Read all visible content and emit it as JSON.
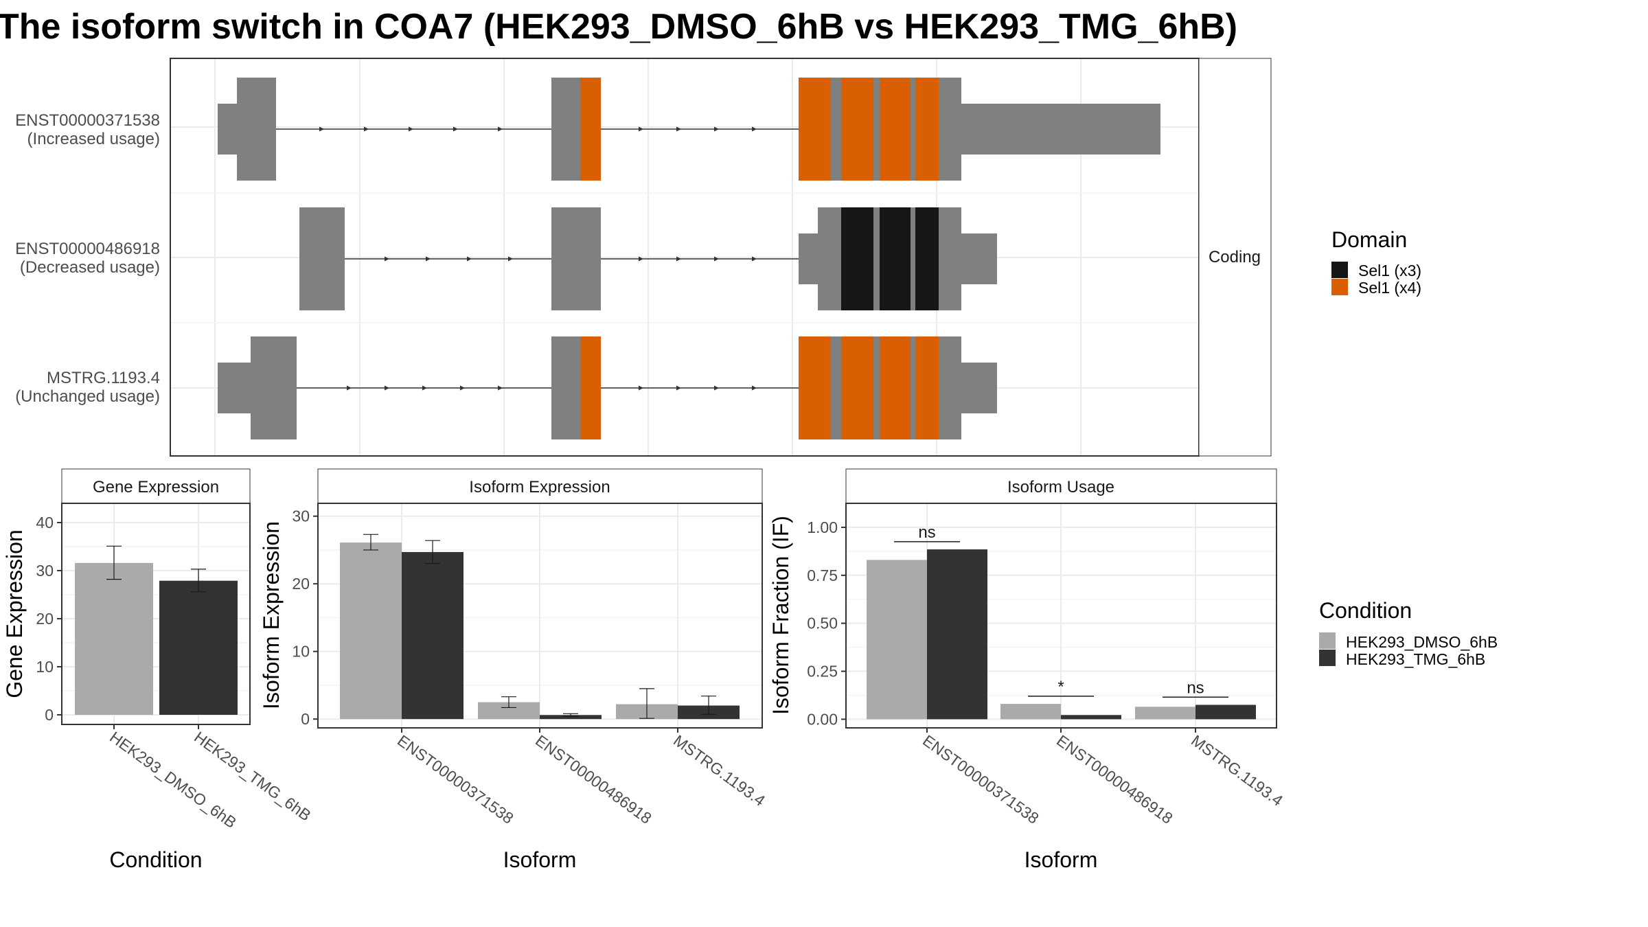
{
  "title": "The isoform switch in COA7 (HEK293_DMSO_6hB vs HEK293_TMG_6hB)",
  "colors": {
    "exon": "#808080",
    "sel1_x3": "#161616",
    "sel1_x4": "#D95F02",
    "dmso": "#AAAAAA",
    "tmg": "#333333",
    "grid": "#EBEBEB",
    "strip_fill": "#FFFFFF"
  },
  "structure": {
    "strip_label": "Coding",
    "transcripts": [
      {
        "id": "ENST00000371538",
        "usage": "(Increased usage)"
      },
      {
        "id": "ENST00000486918",
        "usage": "(Decreased usage)"
      },
      {
        "id": "MSTRG.1193.4",
        "usage": "(Unchanged usage)"
      }
    ],
    "legend": {
      "title": "Domain",
      "items": [
        {
          "label": "Sel1 (x3)",
          "color": "#161616"
        },
        {
          "label": "Sel1 (x4)",
          "color": "#D95F02"
        }
      ]
    }
  },
  "condition_legend": {
    "title": "Condition",
    "items": [
      {
        "label": "HEK293_DMSO_6hB",
        "color": "#AAAAAA"
      },
      {
        "label": "HEK293_TMG_6hB",
        "color": "#333333"
      }
    ]
  },
  "chart_data": [
    {
      "type": "bar",
      "title": "Gene Expression",
      "xlabel": "Condition",
      "ylabel": "Gene Expression",
      "categories": [
        "HEK293_DMSO_6hB",
        "HEK293_TMG_6hB"
      ],
      "series": [
        {
          "name": "HEK293_DMSO_6hB",
          "values": [
            31.6,
            null
          ],
          "error_low": [
            28.2,
            null
          ],
          "error_high": [
            35.1,
            null
          ]
        },
        {
          "name": "HEK293_TMG_6hB",
          "values": [
            null,
            27.9
          ],
          "error_low": [
            null,
            25.6
          ],
          "error_high": [
            null,
            30.3
          ]
        }
      ],
      "ylim": [
        -2,
        44
      ],
      "yticks": [
        0,
        10,
        20,
        30,
        40
      ],
      "yticklabels": [
        "0",
        "10",
        "20",
        "30",
        "40"
      ]
    },
    {
      "type": "bar",
      "title": "Isoform Expression",
      "xlabel": "Isoform",
      "ylabel": "Isoform Expression",
      "categories": [
        "ENST00000371538",
        "ENST00000486918",
        "MSTRG.1193.4"
      ],
      "series": [
        {
          "name": "HEK293_DMSO_6hB",
          "values": [
            26.1,
            2.5,
            2.2
          ],
          "error_low": [
            25.0,
            1.7,
            0.1
          ],
          "error_high": [
            27.3,
            3.3,
            4.5
          ]
        },
        {
          "name": "HEK293_TMG_6hB",
          "values": [
            24.7,
            0.6,
            2.0
          ],
          "error_low": [
            23.0,
            0.4,
            0.7
          ],
          "error_high": [
            26.4,
            0.8,
            3.4
          ]
        }
      ],
      "ylim": [
        -1.3,
        31.9
      ],
      "yticks": [
        0,
        10,
        20,
        30
      ],
      "yticklabels": [
        "0",
        "10",
        "20",
        "30"
      ]
    },
    {
      "type": "bar",
      "title": "Isoform Usage",
      "xlabel": "Isoform",
      "ylabel": "Isoform Fraction (IF)",
      "categories": [
        "ENST00000371538",
        "ENST00000486918",
        "MSTRG.1193.4"
      ],
      "series": [
        {
          "name": "HEK293_DMSO_6hB",
          "values": [
            0.83,
            0.08,
            0.065
          ]
        },
        {
          "name": "HEK293_TMG_6hB",
          "values": [
            0.885,
            0.022,
            0.075
          ]
        }
      ],
      "significance": [
        "ns",
        "*",
        "ns"
      ],
      "ylim": [
        -0.045,
        1.125
      ],
      "yticks": [
        0,
        0.25,
        0.5,
        0.75,
        1.0
      ],
      "yticklabels": [
        "0.00",
        "0.25",
        "0.50",
        "0.75",
        "1.00"
      ]
    }
  ]
}
